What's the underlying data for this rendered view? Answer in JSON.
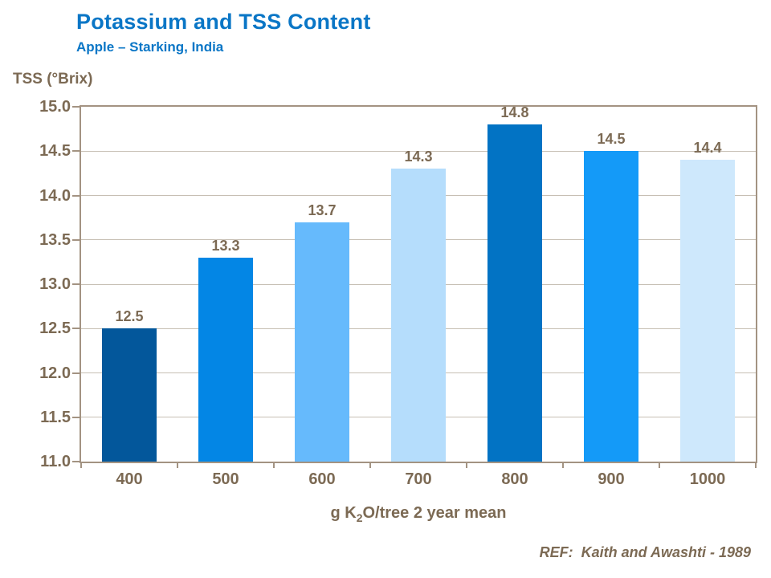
{
  "header": {
    "title": "Potassium and TSS Content",
    "subtitle": "Apple – Starking, India"
  },
  "chart_data": {
    "type": "bar",
    "title": "Potassium and TSS Content",
    "subtitle": "Apple – Starking, India",
    "ylabel": "TSS (°Brix)",
    "xlabel": {
      "prefix": "g K",
      "sub": "2",
      "suffix": "O/tree 2 year mean"
    },
    "categories": [
      "400",
      "500",
      "600",
      "700",
      "800",
      "900",
      "1000"
    ],
    "values": [
      12.5,
      13.3,
      13.7,
      14.3,
      14.8,
      14.5,
      14.4
    ],
    "value_labels": [
      "12.5",
      "13.3",
      "13.7",
      "14.3",
      "14.8",
      "14.5",
      "14.4"
    ],
    "ylim": [
      11.0,
      15.0
    ],
    "ytick_step": 0.5,
    "yticks": [
      "15.0",
      "14.5",
      "14.0",
      "13.5",
      "13.0",
      "12.5",
      "12.0",
      "11.5",
      "11.0"
    ],
    "grid": true,
    "legend_position": "none",
    "bar_colors": [
      "#03579B",
      "#0386E5",
      "#66BAFC",
      "#B5DDFC",
      "#0273C4",
      "#149AF8",
      "#CEE8FC"
    ]
  },
  "footer": {
    "ref": "REF:  Kaith and Awashti - 1989"
  },
  "colors": {
    "title_blue": "#0A76C6",
    "axis_text_brown": "#7C6A54",
    "axis_line": "#A39382",
    "gridline": "#C7BFB4",
    "background": "#FFFFFF"
  }
}
